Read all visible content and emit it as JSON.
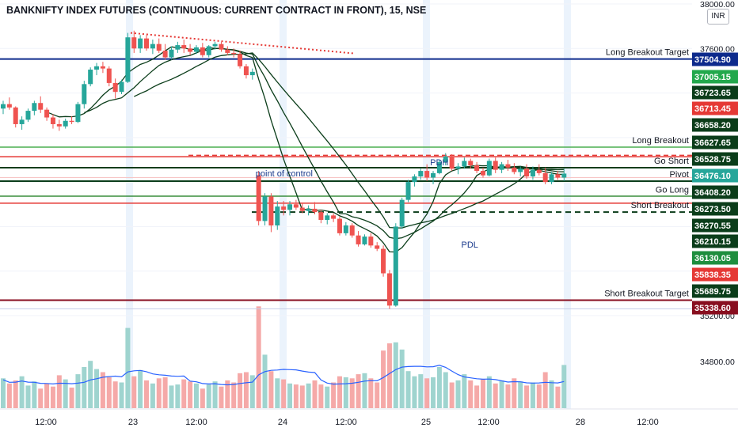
{
  "header": {
    "title": "BANKNIFTY INDEX FUTURES (CONTINUOUS: CURRENT CONTRACT IN FRONT), 15, NSE",
    "currency": "INR"
  },
  "chart_data": {
    "type": "candlestick",
    "title": "BANKNIFTY INDEX FUTURES (CONTINUOUS: CURRENT CONTRACT IN FRONT), 15, NSE",
    "currency": "INR",
    "ylim": [
      35133,
      38000
    ],
    "price_axis_ticks": [
      "38000.00",
      "37600.00",
      "35200.00",
      "34800.00"
    ],
    "x_tick_labels": [
      "12:00",
      "23",
      "12:00",
      "24",
      "12:00",
      "25",
      "12:00",
      "28",
      "12:00"
    ],
    "price_levels": [
      {
        "label": "Long Breakout Target",
        "value": 37504.9,
        "tag": "37504.90",
        "color": "#0d2a8c",
        "tag_color": "#0d2a8c",
        "style": "solid",
        "width": 2
      },
      {
        "label": "",
        "value": 37005.15,
        "tag": "37005.15",
        "color": "#22a84c",
        "tag_color": "#22a84c",
        "style": "none",
        "width": 0
      },
      {
        "label": "",
        "value": 36723.65,
        "tag": "36723.65",
        "color": "#0b3d1a",
        "tag_color": "#0b3d1a",
        "style": "none",
        "width": 0
      },
      {
        "label": "Long Breakout",
        "value": 36713.45,
        "tag": "36713.45",
        "color": "#4caf50",
        "tag_color": "#e53935",
        "style": "solid",
        "width": 1.5
      },
      {
        "label": "",
        "value": 36658.2,
        "tag": "36658.20",
        "color": "#0b3d1a",
        "tag_color": "#0b3d1a",
        "style": "none",
        "width": 0
      },
      {
        "label": "",
        "value": 36627.65,
        "tag": "36627.65",
        "color": "#e53935",
        "tag_color": "#0b3d1a",
        "style": "solid",
        "width": 1.5
      },
      {
        "label": "Go Short",
        "value": 36528.75,
        "tag": "36528.75",
        "color": "#0b3d1a",
        "tag_color": "#0b3d1a",
        "style": "solid",
        "width": 2
      },
      {
        "label": "",
        "value": 36476.1,
        "tag": "36476.10",
        "color": "#26a69a",
        "tag_color": "#26a69a",
        "style": "none",
        "width": 0
      },
      {
        "label": "Pivot",
        "value": 36408.2,
        "tag": "36408.20",
        "color": "#0b3d1a",
        "tag_color": "#0b3d1a",
        "style": "solid",
        "width": 2
      },
      {
        "label": "",
        "value": 36273.5,
        "tag": "36273.50",
        "color": "#388e3c",
        "tag_color": "#0b3d1a",
        "style": "solid",
        "width": 1.5
      },
      {
        "label": "Go Long",
        "value": 36270.55,
        "tag": "36270.55",
        "color": "#0b3d1a",
        "tag_color": "#0b3d1a",
        "style": "none",
        "width": 0
      },
      {
        "label": "",
        "value": 36210.15,
        "tag": "36210.15",
        "color": "#e53935",
        "tag_color": "#0b3d1a",
        "style": "solid",
        "width": 1.5
      },
      {
        "label": "Short Breakout",
        "value": 36130.05,
        "tag": "36130.05",
        "color": "#0b3d1a",
        "tag_color": "#1e8e3e",
        "style": "dashed",
        "width": 2
      },
      {
        "label": "",
        "value": 35838.35,
        "tag": "35838.35",
        "color": "#e53935",
        "tag_color": "#e53935",
        "style": "none",
        "width": 0
      },
      {
        "label": "",
        "value": 35689.75,
        "tag": "35689.75",
        "color": "#0b3d1a",
        "tag_color": "#0b3d1a",
        "style": "none",
        "width": 0
      },
      {
        "label": "Short Breakout Target",
        "value": 35338.6,
        "tag": "35338.60",
        "color": "#880e1f",
        "tag_color": "#880e1f",
        "style": "solid",
        "width": 2
      }
    ],
    "annotations": [
      {
        "text": "point of control",
        "price": 36478,
        "x_bar": 40
      },
      {
        "text": "PDH",
        "price": 36580,
        "x_bar": 68
      },
      {
        "text": "PDL",
        "price": 35840,
        "x_bar": 73
      }
    ],
    "candles": [
      [
        37060,
        37130,
        37010,
        37100
      ],
      [
        37100,
        37160,
        37050,
        37070
      ],
      [
        37070,
        37080,
        36890,
        36920
      ],
      [
        36920,
        36990,
        36870,
        36960
      ],
      [
        36960,
        37060,
        36940,
        37040
      ],
      [
        37040,
        37130,
        37000,
        37110
      ],
      [
        37110,
        37170,
        37020,
        37050
      ],
      [
        37050,
        37070,
        36950,
        36980
      ],
      [
        36980,
        37010,
        36880,
        36920
      ],
      [
        36920,
        36960,
        36860,
        36900
      ],
      [
        36900,
        36970,
        36880,
        36950
      ],
      [
        36950,
        36990,
        36920,
        36940
      ],
      [
        36940,
        37120,
        36930,
        37100
      ],
      [
        37100,
        37310,
        37060,
        37280
      ],
      [
        37280,
        37430,
        37260,
        37410
      ],
      [
        37410,
        37470,
        37360,
        37440
      ],
      [
        37440,
        37480,
        37380,
        37420
      ],
      [
        37420,
        37440,
        37260,
        37290
      ],
      [
        37290,
        37330,
        37150,
        37210
      ],
      [
        37210,
        37320,
        37190,
        37300
      ],
      [
        37300,
        37740,
        37290,
        37700
      ],
      [
        37700,
        37760,
        37560,
        37600
      ],
      [
        37600,
        37720,
        37560,
        37690
      ],
      [
        37690,
        37720,
        37580,
        37600
      ],
      [
        37600,
        37680,
        37550,
        37640
      ],
      [
        37640,
        37690,
        37560,
        37580
      ],
      [
        37580,
        37640,
        37500,
        37520
      ],
      [
        37520,
        37620,
        37500,
        37590
      ],
      [
        37590,
        37660,
        37560,
        37630
      ],
      [
        37630,
        37680,
        37560,
        37600
      ],
      [
        37600,
        37640,
        37540,
        37570
      ],
      [
        37570,
        37630,
        37550,
        37610
      ],
      [
        37610,
        37650,
        37520,
        37540
      ],
      [
        37540,
        37630,
        37520,
        37620
      ],
      [
        37620,
        37660,
        37590,
        37640
      ],
      [
        37640,
        37660,
        37570,
        37590
      ],
      [
        37590,
        37620,
        37540,
        37560
      ],
      [
        37560,
        37600,
        37520,
        37550
      ],
      [
        37550,
        37580,
        37420,
        37440
      ],
      [
        37440,
        37460,
        37330,
        37360
      ],
      [
        37360,
        37420,
        37320,
        37390
      ],
      [
        36460,
        36500,
        36010,
        36050
      ],
      [
        36050,
        36300,
        36010,
        36270
      ],
      [
        36270,
        36300,
        35950,
        36010
      ],
      [
        36010,
        36230,
        35970,
        36180
      ],
      [
        36180,
        36230,
        36100,
        36150
      ],
      [
        36150,
        36230,
        36100,
        36200
      ],
      [
        36200,
        36240,
        36150,
        36170
      ],
      [
        36170,
        36210,
        36120,
        36140
      ],
      [
        36140,
        36190,
        36100,
        36160
      ],
      [
        36160,
        36220,
        36110,
        36130
      ],
      [
        36130,
        36150,
        36030,
        36060
      ],
      [
        36060,
        36120,
        36020,
        36100
      ],
      [
        36100,
        36120,
        36040,
        36070
      ],
      [
        36070,
        36090,
        35920,
        35940
      ],
      [
        35940,
        36040,
        35920,
        36010
      ],
      [
        36010,
        36030,
        35900,
        35920
      ],
      [
        35920,
        35960,
        35820,
        35840
      ],
      [
        35840,
        35930,
        35830,
        35910
      ],
      [
        35910,
        35940,
        35810,
        35830
      ],
      [
        35830,
        35860,
        35780,
        35800
      ],
      [
        35800,
        35830,
        35550,
        35580
      ],
      [
        35580,
        35610,
        35260,
        35290
      ],
      [
        35290,
        36030,
        35280,
        36000
      ],
      [
        36000,
        36260,
        35980,
        36240
      ],
      [
        36240,
        36420,
        36220,
        36400
      ],
      [
        36400,
        36470,
        36360,
        36450
      ],
      [
        36450,
        36520,
        36420,
        36500
      ],
      [
        36500,
        36560,
        36410,
        36440
      ],
      [
        36440,
        36500,
        36380,
        36480
      ],
      [
        36480,
        36600,
        36470,
        36580
      ],
      [
        36580,
        36660,
        36550,
        36630
      ],
      [
        36630,
        36650,
        36500,
        36520
      ],
      [
        36520,
        36570,
        36470,
        36540
      ],
      [
        36540,
        36620,
        36520,
        36590
      ],
      [
        36590,
        36610,
        36520,
        36550
      ],
      [
        36550,
        36580,
        36480,
        36500
      ],
      [
        36500,
        36530,
        36440,
        36460
      ],
      [
        36460,
        36610,
        36450,
        36590
      ],
      [
        36590,
        36620,
        36480,
        36510
      ],
      [
        36510,
        36580,
        36480,
        36560
      ],
      [
        36560,
        36600,
        36500,
        36530
      ],
      [
        36530,
        36570,
        36470,
        36490
      ],
      [
        36490,
        36540,
        36450,
        36520
      ],
      [
        36520,
        36560,
        36430,
        36450
      ],
      [
        36450,
        36540,
        36420,
        36510
      ],
      [
        36510,
        36560,
        36460,
        36480
      ],
      [
        36480,
        36530,
        36380,
        36400
      ],
      [
        36400,
        36490,
        36380,
        36470
      ],
      [
        36470,
        36500,
        36420,
        36440
      ],
      [
        36440,
        36520,
        36410,
        36476
      ]
    ],
    "volumes": [
      0.29,
      0.24,
      0.27,
      0.31,
      0.22,
      0.26,
      0.19,
      0.24,
      0.21,
      0.32,
      0.28,
      0.2,
      0.33,
      0.4,
      0.46,
      0.38,
      0.35,
      0.3,
      0.26,
      0.25,
      0.78,
      0.31,
      0.37,
      0.27,
      0.24,
      0.29,
      0.3,
      0.22,
      0.23,
      0.28,
      0.26,
      0.24,
      0.19,
      0.23,
      0.26,
      0.21,
      0.27,
      0.25,
      0.34,
      0.35,
      0.32,
      0.99,
      0.52,
      0.36,
      0.29,
      0.28,
      0.24,
      0.23,
      0.22,
      0.24,
      0.27,
      0.23,
      0.21,
      0.25,
      0.31,
      0.3,
      0.29,
      0.33,
      0.34,
      0.29,
      0.25,
      0.56,
      0.63,
      0.64,
      0.57,
      0.36,
      0.31,
      0.33,
      0.29,
      0.3,
      0.4,
      0.35,
      0.25,
      0.27,
      0.33,
      0.27,
      0.22,
      0.28,
      0.31,
      0.24,
      0.27,
      0.23,
      0.29,
      0.26,
      0.22,
      0.25,
      0.23,
      0.35,
      0.27,
      0.21,
      0.42
    ]
  }
}
